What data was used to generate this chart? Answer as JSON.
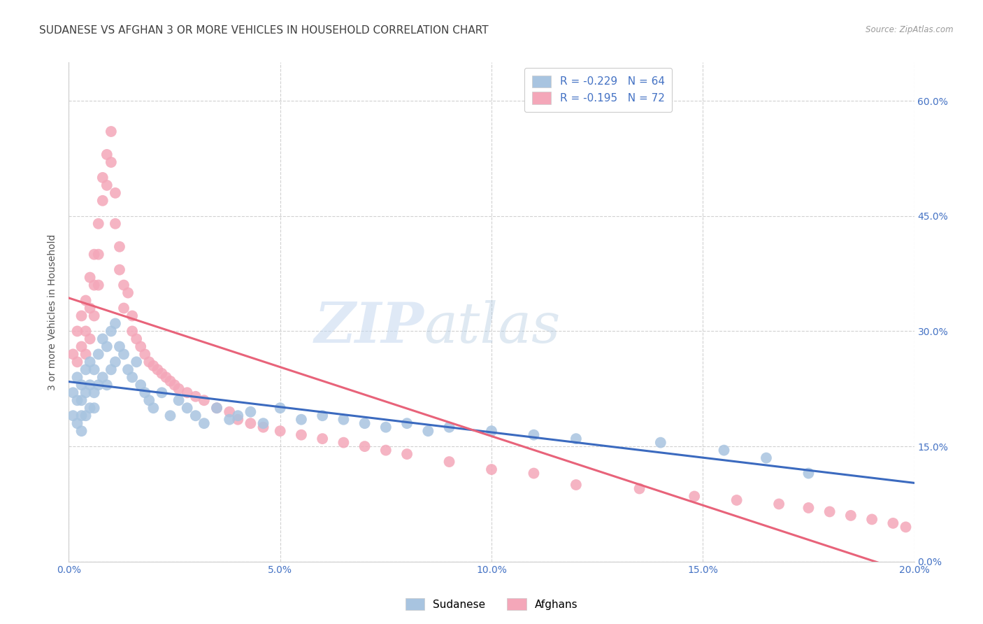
{
  "title": "SUDANESE VS AFGHAN 3 OR MORE VEHICLES IN HOUSEHOLD CORRELATION CHART",
  "source": "Source: ZipAtlas.com",
  "ylabel": "3 or more Vehicles in Household",
  "x_min": 0.0,
  "x_max": 0.2,
  "y_min": 0.0,
  "y_max": 0.65,
  "x_ticks": [
    0.0,
    0.05,
    0.1,
    0.15,
    0.2
  ],
  "x_tick_labels": [
    "0.0%",
    "5.0%",
    "10.0%",
    "15.0%",
    "20.0%"
  ],
  "y_ticks": [
    0.0,
    0.15,
    0.3,
    0.45,
    0.6
  ],
  "y_tick_labels_right": [
    "0.0%",
    "15.0%",
    "30.0%",
    "45.0%",
    "60.0%"
  ],
  "sudanese_color": "#a8c4e0",
  "afghan_color": "#f4a7b9",
  "legend_label_1": "R = -0.229   N = 64",
  "legend_label_2": "R = -0.195   N = 72",
  "legend_bottom_1": "Sudanese",
  "legend_bottom_2": "Afghans",
  "sudanese_x": [
    0.001,
    0.001,
    0.002,
    0.002,
    0.002,
    0.003,
    0.003,
    0.003,
    0.003,
    0.004,
    0.004,
    0.004,
    0.005,
    0.005,
    0.005,
    0.006,
    0.006,
    0.006,
    0.007,
    0.007,
    0.008,
    0.008,
    0.009,
    0.009,
    0.01,
    0.01,
    0.011,
    0.011,
    0.012,
    0.013,
    0.014,
    0.015,
    0.016,
    0.017,
    0.018,
    0.019,
    0.02,
    0.022,
    0.024,
    0.026,
    0.028,
    0.03,
    0.032,
    0.035,
    0.038,
    0.04,
    0.043,
    0.046,
    0.05,
    0.055,
    0.06,
    0.065,
    0.07,
    0.075,
    0.08,
    0.085,
    0.09,
    0.1,
    0.11,
    0.12,
    0.14,
    0.155,
    0.165,
    0.175
  ],
  "sudanese_y": [
    0.22,
    0.19,
    0.24,
    0.21,
    0.18,
    0.23,
    0.21,
    0.19,
    0.17,
    0.25,
    0.22,
    0.19,
    0.26,
    0.23,
    0.2,
    0.25,
    0.22,
    0.2,
    0.27,
    0.23,
    0.29,
    0.24,
    0.28,
    0.23,
    0.3,
    0.25,
    0.31,
    0.26,
    0.28,
    0.27,
    0.25,
    0.24,
    0.26,
    0.23,
    0.22,
    0.21,
    0.2,
    0.22,
    0.19,
    0.21,
    0.2,
    0.19,
    0.18,
    0.2,
    0.185,
    0.19,
    0.195,
    0.18,
    0.2,
    0.185,
    0.19,
    0.185,
    0.18,
    0.175,
    0.18,
    0.17,
    0.175,
    0.17,
    0.165,
    0.16,
    0.155,
    0.145,
    0.135,
    0.115
  ],
  "afghan_x": [
    0.001,
    0.002,
    0.002,
    0.003,
    0.003,
    0.004,
    0.004,
    0.004,
    0.005,
    0.005,
    0.005,
    0.006,
    0.006,
    0.006,
    0.007,
    0.007,
    0.007,
    0.008,
    0.008,
    0.009,
    0.009,
    0.01,
    0.01,
    0.011,
    0.011,
    0.012,
    0.012,
    0.013,
    0.013,
    0.014,
    0.015,
    0.015,
    0.016,
    0.017,
    0.018,
    0.019,
    0.02,
    0.021,
    0.022,
    0.023,
    0.024,
    0.025,
    0.026,
    0.028,
    0.03,
    0.032,
    0.035,
    0.038,
    0.04,
    0.043,
    0.046,
    0.05,
    0.055,
    0.06,
    0.065,
    0.07,
    0.075,
    0.08,
    0.09,
    0.1,
    0.11,
    0.12,
    0.135,
    0.148,
    0.158,
    0.168,
    0.175,
    0.18,
    0.185,
    0.19,
    0.195,
    0.198
  ],
  "afghan_y": [
    0.27,
    0.3,
    0.26,
    0.32,
    0.28,
    0.34,
    0.3,
    0.27,
    0.37,
    0.33,
    0.29,
    0.4,
    0.36,
    0.32,
    0.44,
    0.4,
    0.36,
    0.5,
    0.47,
    0.53,
    0.49,
    0.56,
    0.52,
    0.48,
    0.44,
    0.41,
    0.38,
    0.36,
    0.33,
    0.35,
    0.32,
    0.3,
    0.29,
    0.28,
    0.27,
    0.26,
    0.255,
    0.25,
    0.245,
    0.24,
    0.235,
    0.23,
    0.225,
    0.22,
    0.215,
    0.21,
    0.2,
    0.195,
    0.185,
    0.18,
    0.175,
    0.17,
    0.165,
    0.16,
    0.155,
    0.15,
    0.145,
    0.14,
    0.13,
    0.12,
    0.115,
    0.1,
    0.095,
    0.085,
    0.08,
    0.075,
    0.07,
    0.065,
    0.06,
    0.055,
    0.05,
    0.045
  ],
  "background_color": "#ffffff",
  "grid_color": "#cccccc",
  "axis_color": "#4472c4",
  "title_color": "#404040",
  "title_fontsize": 11,
  "line_blue": "#3b6abf",
  "line_pink": "#e8637a"
}
